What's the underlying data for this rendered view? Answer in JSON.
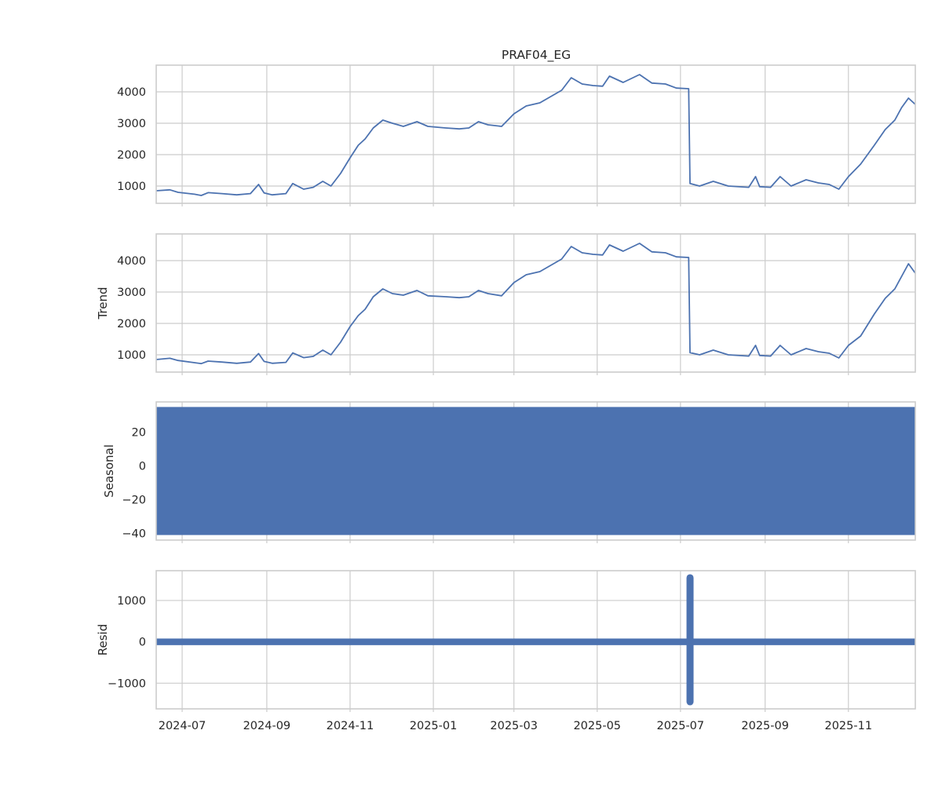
{
  "chart_data": {
    "type": "line",
    "title": "PRAF04_EG",
    "x_range": [
      "2024-06-12",
      "2025-12-20"
    ],
    "x_ticks": [
      "2024-07",
      "2024-09",
      "2024-11",
      "2025-01",
      "2025-03",
      "2025-05",
      "2025-07",
      "2025-09",
      "2025-11"
    ],
    "x_tick_dates": [
      "2024-07-01",
      "2024-09-01",
      "2024-11-01",
      "2025-01-01",
      "2025-03-01",
      "2025-05-01",
      "2025-07-01",
      "2025-09-01",
      "2025-11-01"
    ],
    "grid": true,
    "color": "#4c72b0",
    "panels": [
      {
        "name": "observed",
        "ylabel": "",
        "ylim": [
          450,
          4850
        ],
        "yticks": [
          1000,
          2000,
          3000,
          4000
        ],
        "yticklabels": [
          "1000",
          "2000",
          "3000",
          "4000"
        ],
        "points": [
          [
            "2024-06-12",
            850
          ],
          [
            "2024-06-22",
            880
          ],
          [
            "2024-06-28",
            800
          ],
          [
            "2024-07-10",
            740
          ],
          [
            "2024-07-15",
            700
          ],
          [
            "2024-07-20",
            790
          ],
          [
            "2024-07-30",
            760
          ],
          [
            "2024-08-10",
            720
          ],
          [
            "2024-08-20",
            760
          ],
          [
            "2024-08-26",
            1050
          ],
          [
            "2024-08-30",
            780
          ],
          [
            "2024-09-05",
            720
          ],
          [
            "2024-09-15",
            760
          ],
          [
            "2024-09-20",
            1080
          ],
          [
            "2024-09-28",
            900
          ],
          [
            "2024-10-05",
            960
          ],
          [
            "2024-10-12",
            1150
          ],
          [
            "2024-10-18",
            1000
          ],
          [
            "2024-10-25",
            1400
          ],
          [
            "2024-11-01",
            1900
          ],
          [
            "2024-11-07",
            2300
          ],
          [
            "2024-11-12",
            2500
          ],
          [
            "2024-11-18",
            2850
          ],
          [
            "2024-11-25",
            3100
          ],
          [
            "2024-12-02",
            3000
          ],
          [
            "2024-12-10",
            2900
          ],
          [
            "2024-12-20",
            3050
          ],
          [
            "2024-12-28",
            2900
          ],
          [
            "2025-01-10",
            2850
          ],
          [
            "2025-01-20",
            2820
          ],
          [
            "2025-01-27",
            2850
          ],
          [
            "2025-02-03",
            3050
          ],
          [
            "2025-02-10",
            2950
          ],
          [
            "2025-02-20",
            2900
          ],
          [
            "2025-03-01",
            3300
          ],
          [
            "2025-03-10",
            3550
          ],
          [
            "2025-03-20",
            3650
          ],
          [
            "2025-03-28",
            3850
          ],
          [
            "2025-04-05",
            4050
          ],
          [
            "2025-04-12",
            4450
          ],
          [
            "2025-04-20",
            4250
          ],
          [
            "2025-04-28",
            4200
          ],
          [
            "2025-05-05",
            4180
          ],
          [
            "2025-05-10",
            4500
          ],
          [
            "2025-05-20",
            4300
          ],
          [
            "2025-06-01",
            4550
          ],
          [
            "2025-06-10",
            4280
          ],
          [
            "2025-06-20",
            4250
          ],
          [
            "2025-06-28",
            4120
          ],
          [
            "2025-07-07",
            4100
          ],
          [
            "2025-07-08",
            1080
          ],
          [
            "2025-07-15",
            1000
          ],
          [
            "2025-07-25",
            1150
          ],
          [
            "2025-08-05",
            1000
          ],
          [
            "2025-08-20",
            960
          ],
          [
            "2025-08-25",
            1300
          ],
          [
            "2025-08-28",
            980
          ],
          [
            "2025-09-05",
            960
          ],
          [
            "2025-09-12",
            1300
          ],
          [
            "2025-09-20",
            1000
          ],
          [
            "2025-10-01",
            1200
          ],
          [
            "2025-10-10",
            1100
          ],
          [
            "2025-10-18",
            1050
          ],
          [
            "2025-10-25",
            900
          ],
          [
            "2025-11-01",
            1300
          ],
          [
            "2025-11-10",
            1700
          ],
          [
            "2025-11-20",
            2300
          ],
          [
            "2025-11-28",
            2800
          ],
          [
            "2025-12-05",
            3100
          ],
          [
            "2025-12-10",
            3500
          ],
          [
            "2025-12-15",
            3800
          ],
          [
            "2025-12-20",
            3600
          ]
        ]
      },
      {
        "name": "trend",
        "ylabel": "Trend",
        "ylim": [
          450,
          4850
        ],
        "yticks": [
          1000,
          2000,
          3000,
          4000
        ],
        "yticklabels": [
          "1000",
          "2000",
          "3000",
          "4000"
        ],
        "points": [
          [
            "2024-06-12",
            850
          ],
          [
            "2024-06-22",
            890
          ],
          [
            "2024-06-28",
            820
          ],
          [
            "2024-07-10",
            750
          ],
          [
            "2024-07-15",
            720
          ],
          [
            "2024-07-20",
            800
          ],
          [
            "2024-07-30",
            770
          ],
          [
            "2024-08-10",
            730
          ],
          [
            "2024-08-20",
            770
          ],
          [
            "2024-08-26",
            1040
          ],
          [
            "2024-08-30",
            790
          ],
          [
            "2024-09-05",
            730
          ],
          [
            "2024-09-15",
            760
          ],
          [
            "2024-09-20",
            1060
          ],
          [
            "2024-09-28",
            910
          ],
          [
            "2024-10-05",
            950
          ],
          [
            "2024-10-12",
            1150
          ],
          [
            "2024-10-18",
            1000
          ],
          [
            "2024-10-25",
            1400
          ],
          [
            "2024-11-01",
            1900
          ],
          [
            "2024-11-07",
            2250
          ],
          [
            "2024-11-12",
            2450
          ],
          [
            "2024-11-18",
            2850
          ],
          [
            "2024-11-25",
            3100
          ],
          [
            "2024-12-02",
            2950
          ],
          [
            "2024-12-10",
            2900
          ],
          [
            "2024-12-20",
            3050
          ],
          [
            "2024-12-28",
            2880
          ],
          [
            "2025-01-10",
            2850
          ],
          [
            "2025-01-20",
            2820
          ],
          [
            "2025-01-27",
            2850
          ],
          [
            "2025-02-03",
            3050
          ],
          [
            "2025-02-10",
            2950
          ],
          [
            "2025-02-20",
            2880
          ],
          [
            "2025-03-01",
            3300
          ],
          [
            "2025-03-10",
            3550
          ],
          [
            "2025-03-20",
            3650
          ],
          [
            "2025-03-28",
            3850
          ],
          [
            "2025-04-05",
            4050
          ],
          [
            "2025-04-12",
            4450
          ],
          [
            "2025-04-20",
            4250
          ],
          [
            "2025-04-28",
            4200
          ],
          [
            "2025-05-05",
            4180
          ],
          [
            "2025-05-10",
            4500
          ],
          [
            "2025-05-20",
            4300
          ],
          [
            "2025-06-01",
            4550
          ],
          [
            "2025-06-10",
            4280
          ],
          [
            "2025-06-20",
            4250
          ],
          [
            "2025-06-28",
            4120
          ],
          [
            "2025-07-07",
            4100
          ],
          [
            "2025-07-08",
            1070
          ],
          [
            "2025-07-15",
            1000
          ],
          [
            "2025-07-25",
            1150
          ],
          [
            "2025-08-05",
            1000
          ],
          [
            "2025-08-20",
            960
          ],
          [
            "2025-08-25",
            1300
          ],
          [
            "2025-08-28",
            980
          ],
          [
            "2025-09-05",
            960
          ],
          [
            "2025-09-12",
            1300
          ],
          [
            "2025-09-20",
            1000
          ],
          [
            "2025-10-01",
            1200
          ],
          [
            "2025-10-10",
            1100
          ],
          [
            "2025-10-18",
            1050
          ],
          [
            "2025-10-25",
            900
          ],
          [
            "2025-11-01",
            1300
          ],
          [
            "2025-11-10",
            1600
          ],
          [
            "2025-11-20",
            2300
          ],
          [
            "2025-11-28",
            2800
          ],
          [
            "2025-12-05",
            3100
          ],
          [
            "2025-12-10",
            3500
          ],
          [
            "2025-12-15",
            3900
          ],
          [
            "2025-12-20",
            3600
          ]
        ]
      },
      {
        "name": "seasonal",
        "ylabel": "Seasonal",
        "ylim": [
          -44,
          38
        ],
        "yticks": [
          -40,
          -20,
          0,
          20
        ],
        "yticklabels": [
          "−40",
          "−20",
          "0",
          "20"
        ],
        "band": [
          -41,
          35
        ]
      },
      {
        "name": "resid",
        "ylabel": "Resid",
        "ylim": [
          -1620,
          1720
        ],
        "yticks": [
          -1000,
          0,
          1000
        ],
        "yticklabels": [
          "−1000",
          "0",
          "1000"
        ],
        "band": [
          -80,
          80
        ],
        "spike": {
          "date": "2025-07-08",
          "range": [
            -1450,
            1550
          ]
        }
      }
    ]
  }
}
